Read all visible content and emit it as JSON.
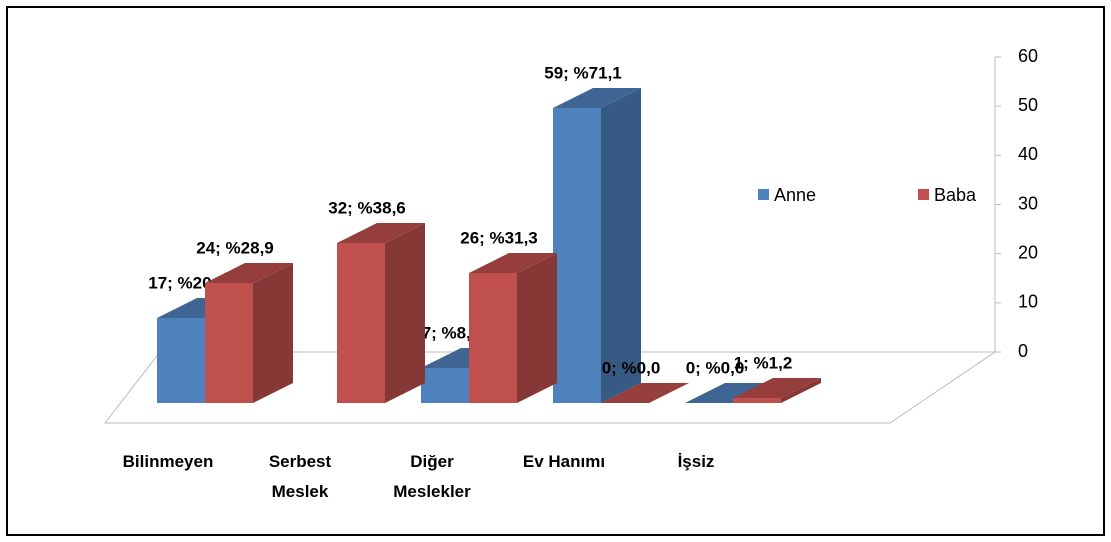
{
  "chart_data": {
    "type": "bar3d",
    "categories": [
      "Bilinmeyen",
      "Serbest Meslek",
      "Diğer Meslekler",
      "Ev Hanımı",
      "İşsiz"
    ],
    "series": [
      {
        "name": "Anne",
        "color": "#4f81bd",
        "values": [
          17,
          null,
          7,
          59,
          0
        ],
        "value_labels": [
          "17; %20,5",
          null,
          "7; %8,4",
          "59; %71,1",
          "0; %0,0"
        ]
      },
      {
        "name": "Baba",
        "color": "#c0504d",
        "values": [
          24,
          32,
          26,
          0,
          1
        ],
        "value_labels": [
          "24; %28,9",
          "32; %38,6",
          "26; %31,3",
          "0; %0,0",
          "1; %1,2"
        ]
      }
    ],
    "ylim": [
      0,
      60
    ],
    "yticks": [
      0,
      10,
      20,
      30,
      40,
      50,
      60
    ],
    "legend": "right"
  }
}
